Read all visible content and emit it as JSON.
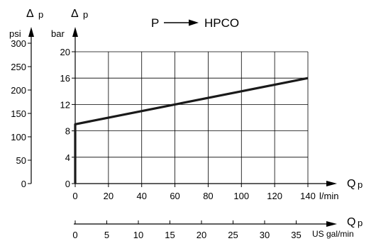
{
  "chart_data": {
    "type": "line",
    "title": "P ⟶ HPCO",
    "title_parts": {
      "from": "P",
      "to": "HPCO"
    },
    "grid": true,
    "x_axes": {
      "primary": {
        "symbol": "Q",
        "subscript": "p",
        "unit": "l/min",
        "xlim": [
          0,
          140
        ],
        "ticks": [
          0,
          20,
          40,
          60,
          80,
          100,
          120,
          140
        ]
      },
      "secondary": {
        "symbol": "Q",
        "subscript": "p",
        "unit": "US gal/min",
        "ticks": [
          0,
          5,
          10,
          15,
          20,
          25,
          30,
          35
        ]
      }
    },
    "y_axes": {
      "primary": {
        "symbol": "Δ",
        "subscript": "p",
        "unit": "bar",
        "ylim": [
          0,
          20
        ],
        "ticks": [
          0,
          4,
          8,
          12,
          16,
          20
        ]
      },
      "secondary": {
        "symbol": "Δ",
        "subscript": "p",
        "unit": "psi",
        "ticks": [
          0,
          50,
          100,
          150,
          200,
          250,
          300
        ]
      }
    },
    "series": [
      {
        "x": [
          0,
          0,
          140
        ],
        "y": [
          0,
          9,
          16
        ]
      }
    ]
  }
}
